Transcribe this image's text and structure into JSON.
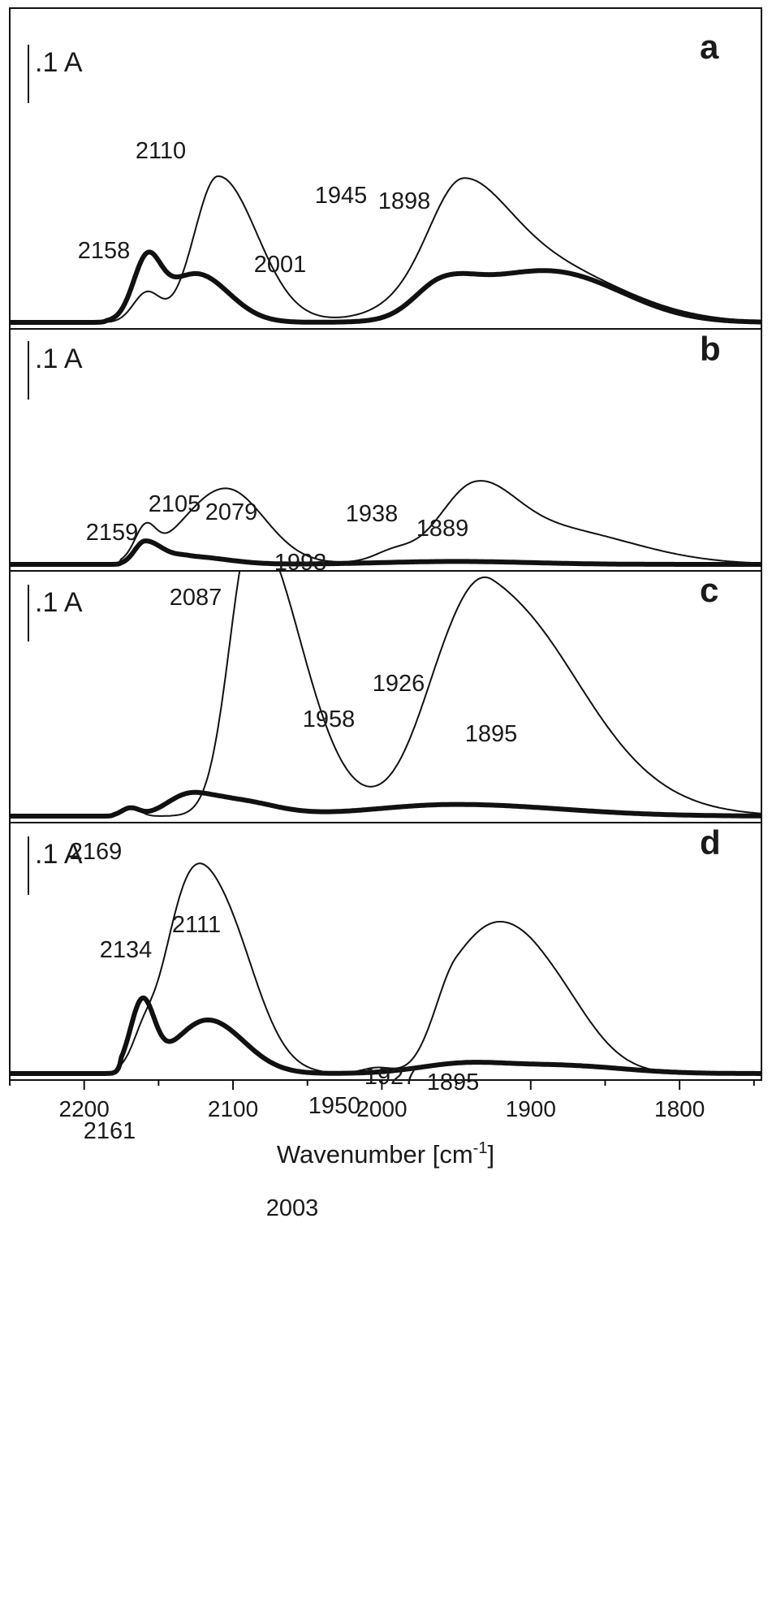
{
  "x_axis": {
    "title": "Wavenumber [cm",
    "title_sup": "-1",
    "title_end": "]",
    "ticks": [
      2200,
      2100,
      2000,
      1900,
      1800
    ],
    "tick_labels": [
      "2200",
      "2100",
      "2000",
      "1900",
      "1800"
    ],
    "range": [
      2250,
      1745
    ],
    "reversed": true
  },
  "chart_data": [
    {
      "type": "line",
      "panel": "a",
      "scale_bar_label": ".1 A",
      "ylim": [
        0,
        0.33
      ],
      "series": [
        {
          "style": "thin",
          "peaks": [
            [
              2158,
              0.03
            ],
            [
              2110,
              0.15
            ],
            [
              1960,
              0.03
            ],
            [
              1945,
              0.081
            ],
            [
              1898,
              0.06
            ]
          ],
          "widths": [
            [
              9,
              9
            ],
            [
              16,
              26
            ],
            [
              24,
              26
            ],
            [
              20,
              32
            ],
            [
              55,
              55
            ]
          ],
          "onset": 2185
        },
        {
          "style": "thick",
          "peaks": [
            [
              2158,
              0.055
            ],
            [
              2125,
              0.05
            ],
            [
              1960,
              0.03
            ],
            [
              1905,
              0.04
            ],
            [
              1860,
              0.02
            ]
          ],
          "widths": [
            [
              9,
              9
            ],
            [
              22,
              22
            ],
            [
              18,
              22
            ],
            [
              40,
              45
            ],
            [
              40,
              40
            ]
          ],
          "onset": 2185
        }
      ],
      "annotations": [
        {
          "text": "2158",
          "x": 2158
        },
        {
          "text": "2110",
          "x": 2110
        },
        {
          "text": "2001",
          "x": 2001
        },
        {
          "text": "1945",
          "x": 1945
        },
        {
          "text": "1898",
          "x": 1898
        }
      ]
    },
    {
      "type": "line",
      "panel": "b",
      "scale_bar_label": ".1 A",
      "ylim": [
        0,
        0.33
      ],
      "series": [
        {
          "style": "thin",
          "peaks": [
            [
              2159,
              0.03
            ],
            [
              2105,
              0.078
            ],
            [
              1993,
              0.008
            ],
            [
              1938,
              0.06
            ],
            [
              1889,
              0.037
            ]
          ],
          "widths": [
            [
              7,
              7
            ],
            [
              28,
              26
            ],
            [
              12,
              12
            ],
            [
              22,
              26
            ],
            [
              55,
              55
            ]
          ],
          "onset": 2175
        },
        {
          "style": "thick",
          "peaks": [
            [
              2159,
              0.024
            ],
            [
              2130,
              0.008
            ],
            [
              1950,
              0.003
            ]
          ],
          "widths": [
            [
              7,
              12
            ],
            [
              10,
              25
            ],
            [
              50,
              50
            ]
          ],
          "onset": 2175
        }
      ],
      "annotations": [
        {
          "text": "2159",
          "x": 2159
        },
        {
          "text": "2105",
          "x": 2105
        },
        {
          "text": "2079",
          "x": 2079
        },
        {
          "text": "1993",
          "x": 1993
        },
        {
          "text": "1938",
          "x": 1938
        },
        {
          "text": "1889",
          "x": 1889
        }
      ]
    },
    {
      "type": "line",
      "panel": "c",
      "scale_bar_label": ".1 A",
      "ylim": [
        0,
        0.33
      ],
      "series": [
        {
          "style": "thin",
          "peaks": [
            [
              2169,
              0.01
            ],
            [
              2087,
              0.296
            ],
            [
              1958,
              0.06
            ],
            [
              1926,
              0.17
            ],
            [
              1895,
              0.055
            ]
          ],
          "widths": [
            [
              6,
              6
            ],
            [
              15,
              32
            ],
            [
              22,
              24
            ],
            [
              28,
              50
            ],
            [
              60,
              60
            ]
          ],
          "onset": 2180
        },
        {
          "style": "thick",
          "peaks": [
            [
              2169,
              0.008
            ],
            [
              2132,
              0.017
            ],
            [
              2103,
              0.017
            ],
            [
              1950,
              0.012
            ]
          ],
          "widths": [
            [
              6,
              6
            ],
            [
              14,
              14
            ],
            [
              20,
              28
            ],
            [
              55,
              70
            ]
          ],
          "onset": 2180
        }
      ],
      "annotations": [
        {
          "text": "2169",
          "x": 2169
        },
        {
          "text": "2087",
          "x": 2087
        },
        {
          "text": "1958",
          "x": 1958
        },
        {
          "text": "1926",
          "x": 1926
        },
        {
          "text": "1895",
          "x": 1895
        }
      ]
    },
    {
      "type": "line",
      "panel": "d",
      "scale_bar_label": ".1 A",
      "ylim": [
        0,
        0.33
      ],
      "series": [
        {
          "style": "thin",
          "peaks": [
            [
              2161,
              0.02
            ],
            [
              2134,
              0.08
            ],
            [
              2111,
              0.175
            ],
            [
              2003,
              0.006
            ],
            [
              1950,
              0.088
            ],
            [
              1927,
              0.04
            ],
            [
              1895,
              0.103
            ]
          ],
          "widths": [
            [
              7,
              7
            ],
            [
              15,
              15
            ],
            [
              24,
              24
            ],
            [
              10,
              10
            ],
            [
              15,
              30
            ],
            [
              20,
              20
            ],
            [
              26,
              30
            ]
          ],
          "onset": 2175
        },
        {
          "style": "thick",
          "peaks": [
            [
              2161,
              0.07
            ],
            [
              2117,
              0.055
            ],
            [
              1945,
              0.01
            ],
            [
              1878,
              0.008
            ]
          ],
          "widths": [
            [
              8,
              8
            ],
            [
              22,
              24
            ],
            [
              30,
              30
            ],
            [
              35,
              40
            ]
          ],
          "onset": 2175
        }
      ],
      "annotations": [
        {
          "text": "2161",
          "x": 2161
        },
        {
          "text": "2134",
          "x": 2134
        },
        {
          "text": "2111",
          "x": 2111
        },
        {
          "text": "2003",
          "x": 2003
        },
        {
          "text": "1950",
          "x": 1950
        },
        {
          "text": "1927",
          "x": 1927
        },
        {
          "text": "1895",
          "x": 1895
        }
      ]
    }
  ]
}
